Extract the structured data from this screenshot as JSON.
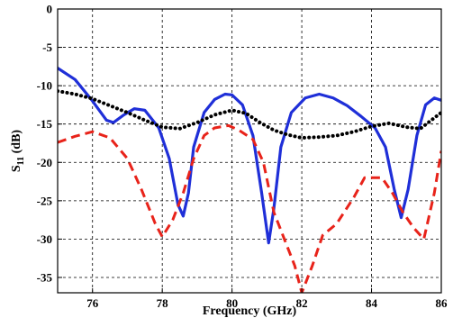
{
  "chart_data": {
    "type": "line",
    "xlabel": "Frequency (GHz)",
    "ylabel_main": "S",
    "ylabel_sub": "11",
    "ylabel_tail": " (dB)",
    "xlim": [
      75,
      86
    ],
    "ylim": [
      -37,
      0
    ],
    "xticks": [
      76,
      78,
      80,
      82,
      84,
      86
    ],
    "yticks": [
      0,
      -5,
      -10,
      -15,
      -20,
      -25,
      -30,
      -35
    ],
    "xtick_labels": [
      "76",
      "78",
      "80",
      "82",
      "84",
      "86"
    ],
    "ytick_labels": [
      "0",
      "-5",
      "-10",
      "-15",
      "-20",
      "-25",
      "-30",
      "-35"
    ],
    "grid": true,
    "series": [
      {
        "color": "#1f2fd8",
        "style": "solid",
        "points": [
          [
            75.0,
            -7.7
          ],
          [
            75.5,
            -9.2
          ],
          [
            76.0,
            -12.0
          ],
          [
            76.4,
            -14.5
          ],
          [
            76.6,
            -14.8
          ],
          [
            76.9,
            -13.8
          ],
          [
            77.2,
            -13.0
          ],
          [
            77.5,
            -13.2
          ],
          [
            77.9,
            -15.5
          ],
          [
            78.2,
            -19.5
          ],
          [
            78.45,
            -25.5
          ],
          [
            78.6,
            -27.0
          ],
          [
            78.75,
            -24.0
          ],
          [
            78.9,
            -18.0
          ],
          [
            79.2,
            -13.5
          ],
          [
            79.5,
            -11.8
          ],
          [
            79.8,
            -11.1
          ],
          [
            80.0,
            -11.2
          ],
          [
            80.3,
            -12.5
          ],
          [
            80.6,
            -16.5
          ],
          [
            80.85,
            -24.0
          ],
          [
            81.05,
            -30.5
          ],
          [
            81.2,
            -26.0
          ],
          [
            81.4,
            -18.0
          ],
          [
            81.7,
            -13.5
          ],
          [
            82.1,
            -11.6
          ],
          [
            82.5,
            -11.1
          ],
          [
            82.9,
            -11.6
          ],
          [
            83.3,
            -12.6
          ],
          [
            83.7,
            -14.0
          ],
          [
            84.1,
            -15.5
          ],
          [
            84.4,
            -18.0
          ],
          [
            84.65,
            -23.5
          ],
          [
            84.85,
            -27.2
          ],
          [
            85.05,
            -23.5
          ],
          [
            85.3,
            -16.5
          ],
          [
            85.55,
            -12.5
          ],
          [
            85.8,
            -11.6
          ],
          [
            86.0,
            -11.9
          ]
        ]
      },
      {
        "color": "#000000",
        "style": "dotted",
        "points": [
          [
            75.0,
            -10.7
          ],
          [
            75.5,
            -11.1
          ],
          [
            76.0,
            -11.7
          ],
          [
            76.5,
            -12.6
          ],
          [
            77.0,
            -13.5
          ],
          [
            77.5,
            -14.5
          ],
          [
            78.0,
            -15.4
          ],
          [
            78.5,
            -15.6
          ],
          [
            79.0,
            -14.8
          ],
          [
            79.5,
            -13.8
          ],
          [
            80.0,
            -13.2
          ],
          [
            80.4,
            -13.6
          ],
          [
            80.8,
            -14.8
          ],
          [
            81.2,
            -15.8
          ],
          [
            81.6,
            -16.4
          ],
          [
            82.0,
            -16.8
          ],
          [
            82.5,
            -16.7
          ],
          [
            83.0,
            -16.5
          ],
          [
            83.5,
            -16.0
          ],
          [
            84.0,
            -15.3
          ],
          [
            84.5,
            -14.9
          ],
          [
            85.0,
            -15.4
          ],
          [
            85.4,
            -15.6
          ],
          [
            85.8,
            -14.2
          ],
          [
            86.0,
            -13.5
          ]
        ]
      },
      {
        "color": "#e8231a",
        "style": "dashed",
        "points": [
          [
            75.0,
            -17.4
          ],
          [
            75.5,
            -16.6
          ],
          [
            76.0,
            -16.0
          ],
          [
            76.5,
            -16.8
          ],
          [
            77.0,
            -19.5
          ],
          [
            77.4,
            -23.5
          ],
          [
            77.8,
            -28.0
          ],
          [
            78.0,
            -29.7
          ],
          [
            78.3,
            -27.5
          ],
          [
            78.6,
            -24.0
          ],
          [
            78.9,
            -19.5
          ],
          [
            79.2,
            -16.5
          ],
          [
            79.5,
            -15.5
          ],
          [
            79.9,
            -15.2
          ],
          [
            80.2,
            -15.8
          ],
          [
            80.6,
            -17.0
          ],
          [
            80.9,
            -20.0
          ],
          [
            81.2,
            -26.5
          ],
          [
            81.5,
            -30.0
          ],
          [
            81.8,
            -33.5
          ],
          [
            82.0,
            -37.0
          ],
          [
            82.3,
            -33.5
          ],
          [
            82.6,
            -29.5
          ],
          [
            83.0,
            -28.0
          ],
          [
            83.5,
            -24.5
          ],
          [
            83.8,
            -22.0
          ],
          [
            84.3,
            -22.0
          ],
          [
            84.6,
            -24.0
          ],
          [
            84.9,
            -26.5
          ],
          [
            85.2,
            -28.5
          ],
          [
            85.5,
            -30.0
          ],
          [
            85.8,
            -24.0
          ],
          [
            86.0,
            -18.5
          ]
        ]
      }
    ]
  }
}
